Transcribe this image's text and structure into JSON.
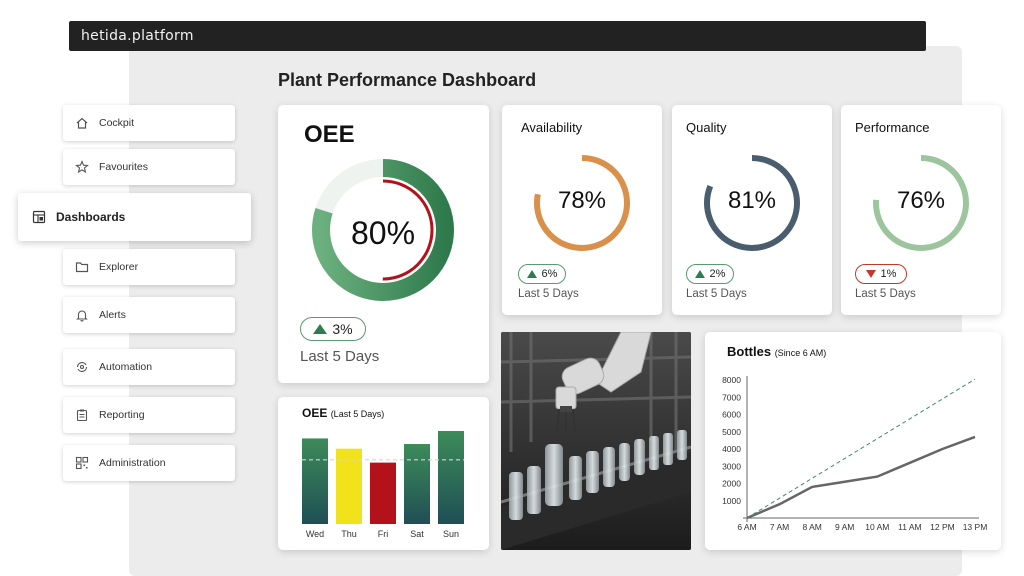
{
  "app": {
    "brand": "hetida.platform"
  },
  "page": {
    "title": "Plant Performance Dashboard"
  },
  "sidebar": {
    "items": [
      {
        "label": "Cockpit",
        "icon": "home-icon"
      },
      {
        "label": "Favourites",
        "icon": "star-icon"
      },
      {
        "label": "Dashboards",
        "icon": "dashboard-icon",
        "active": true
      },
      {
        "label": "Explorer",
        "icon": "folder-icon"
      },
      {
        "label": "Alerts",
        "icon": "bell-icon"
      },
      {
        "label": "Automation",
        "icon": "automation-icon"
      },
      {
        "label": "Reporting",
        "icon": "clipboard-icon"
      },
      {
        "label": "Administration",
        "icon": "qr-icon"
      }
    ]
  },
  "oee": {
    "title": "OEE",
    "value": "80%",
    "fraction": 0.8,
    "delta": "3%",
    "trend": "up",
    "period": "Last 5 Days",
    "color": "#3d8b5a",
    "inner_color": "#b3121a"
  },
  "kpis": [
    {
      "title": "Availability",
      "value": "78%",
      "fraction": 0.78,
      "delta": "6%",
      "trend": "up",
      "period": "Last 5 Days",
      "color": "#d9904a"
    },
    {
      "title": "Quality",
      "value": "81%",
      "fraction": 0.81,
      "delta": "2%",
      "trend": "up",
      "period": "Last 5 Days",
      "color": "#4a5d6e"
    },
    {
      "title": "Performance",
      "value": "76%",
      "fraction": 0.76,
      "delta": "1%",
      "trend": "down",
      "period": "Last 5 Days",
      "color": "#9cc59e"
    }
  ],
  "oee_bars": {
    "title": "OEE",
    "subtitle": "(Last 5 Days)"
  },
  "bottles": {
    "title": "Bottles",
    "subtitle": "(Since 6 AM)"
  },
  "chart_data": [
    {
      "type": "bar",
      "title": "OEE (Last 5 Days)",
      "categories": [
        "Wed",
        "Thu",
        "Fri",
        "Sat",
        "Sun"
      ],
      "values": [
        0.92,
        0.81,
        0.66,
        0.86,
        1.0
      ],
      "target": 0.69,
      "bar_colors": [
        "#2b6b55",
        "#f2e21c",
        "#b3121a",
        "#2b6b55",
        "#2b6b55"
      ],
      "ylim": [
        0,
        1
      ]
    },
    {
      "type": "line",
      "title": "Bottles (Since 6 AM)",
      "x": [
        "6 AM",
        "7 AM",
        "8 AM",
        "9 AM",
        "10 AM",
        "11 AM",
        "12 PM",
        "13 PM"
      ],
      "series": [
        {
          "values": [
            0,
            800,
            1800,
            2100,
            2400,
            3200,
            4000,
            4700
          ],
          "style": "solid",
          "color": "#666666"
        },
        {
          "values": [
            0,
            1150,
            2300,
            3450,
            4600,
            5750,
            6900,
            8050
          ],
          "style": "dashed",
          "color": "#3d8b6e"
        }
      ],
      "yticks": [
        1000,
        2000,
        3000,
        4000,
        5000,
        6000,
        7000,
        8000
      ],
      "ylim": [
        0,
        8000
      ]
    }
  ]
}
